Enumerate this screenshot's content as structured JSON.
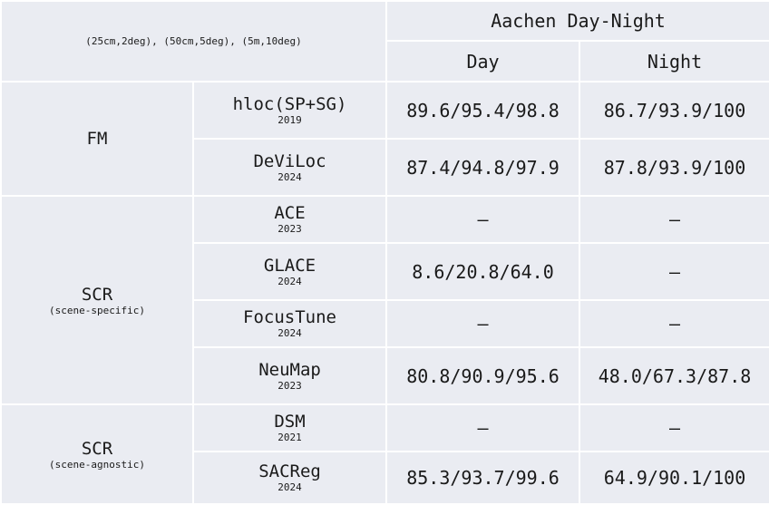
{
  "header": {
    "metric": "(25cm,2deg), (50cm,5deg), (5m,10deg)",
    "dataset": "Aachen Day-Night",
    "columns": [
      "Day",
      "Night"
    ]
  },
  "groups": [
    {
      "label": "FM",
      "sublabel": ""
    },
    {
      "label": "SCR",
      "sublabel": "(scene-specific)"
    },
    {
      "label": "SCR",
      "sublabel": "(scene-agnostic)"
    }
  ],
  "rows": [
    {
      "method": "hloc(SP+SG)",
      "year": "2019",
      "day": "89.6/95.4/98.8",
      "night": "86.7/93.9/100"
    },
    {
      "method": "DeViLoc",
      "year": "2024",
      "day": "87.4/94.8/97.9",
      "night": "87.8/93.9/100"
    },
    {
      "method": "ACE",
      "year": "2023",
      "day": "–",
      "night": "–"
    },
    {
      "method": "GLACE",
      "year": "2024",
      "day": "8.6/20.8/64.0",
      "night": "–"
    },
    {
      "method": "FocusTune",
      "year": "2024",
      "day": "–",
      "night": "–"
    },
    {
      "method": "NeuMap",
      "year": "2023",
      "day": "80.8/90.9/95.6",
      "night": "48.0/67.3/87.8"
    },
    {
      "method": "DSM",
      "year": "2021",
      "day": "–",
      "night": "–"
    },
    {
      "method": "SACReg",
      "year": "2024",
      "day": "85.3/93.7/99.6",
      "night": "64.9/90.1/100"
    }
  ]
}
